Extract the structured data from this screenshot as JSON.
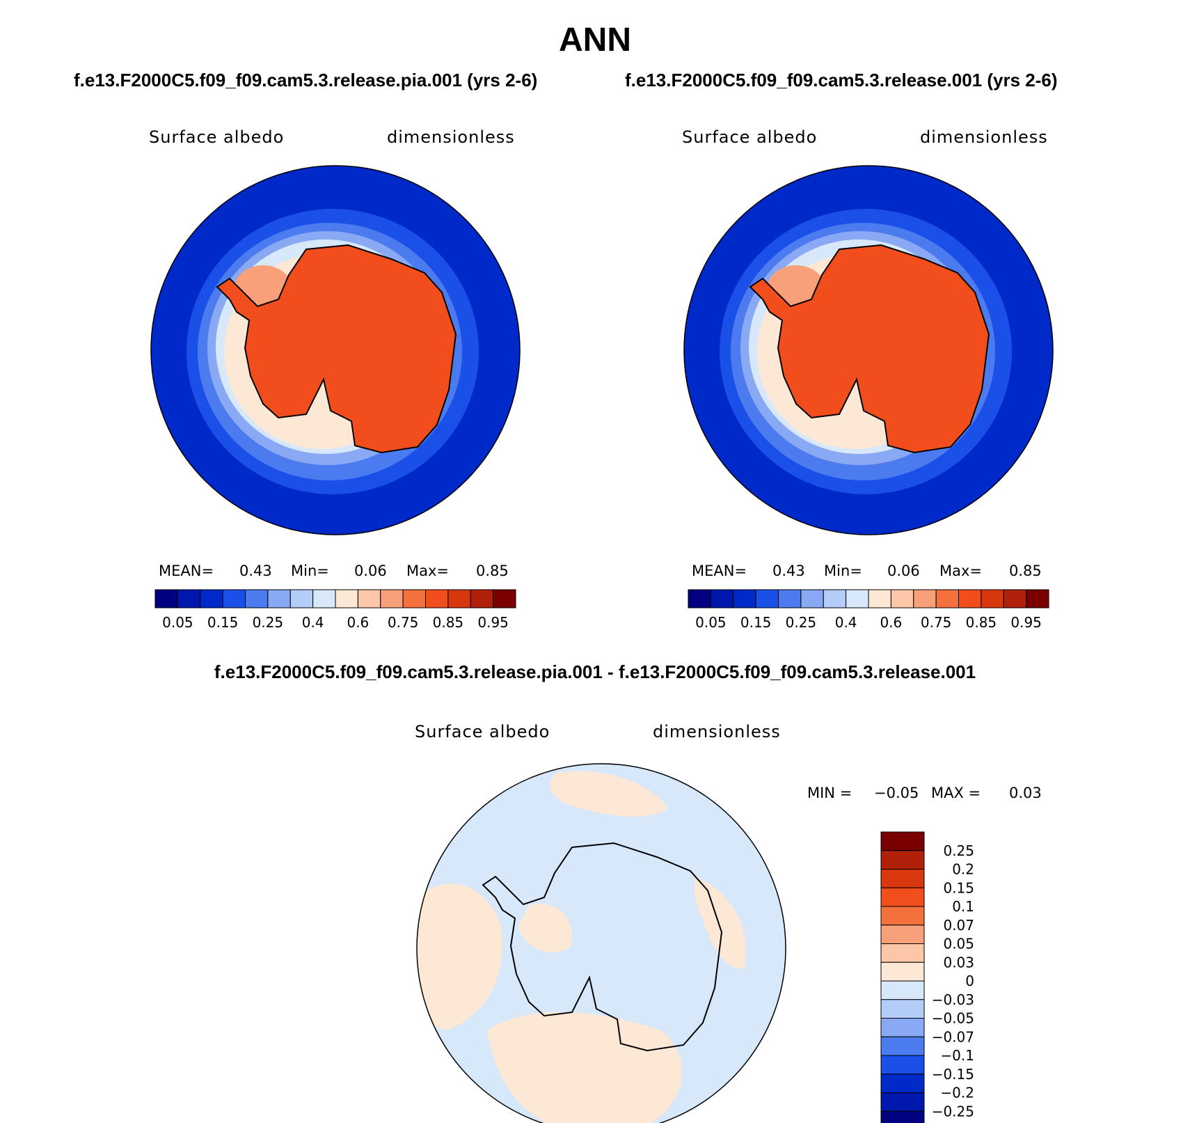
{
  "figure": {
    "title": "ANN"
  },
  "chart_data": [
    {
      "type": "heatmap",
      "title": "f.e13.F2000C5.f09_f09.cam5.3.release.pia.001 (yrs 2-6)",
      "variable": "Surface albedo",
      "units": "dimensionless",
      "projection": "south-polar-stereographic",
      "stats": {
        "mean_label": "MEAN=",
        "mean": "0.43",
        "min_label": "Min=",
        "min": "0.06",
        "max_label": "Max=",
        "max": "0.85"
      },
      "colorbar": {
        "orientation": "horizontal",
        "levels": [
          "0.05",
          "0.15",
          "0.25",
          "0.4",
          "0.6",
          "0.75",
          "0.85",
          "0.95"
        ],
        "colors": [
          "#000080",
          "#0017ad",
          "#0029c9",
          "#1a4fe8",
          "#4c7bef",
          "#8aa9f4",
          "#b4cdf8",
          "#d8e8fb",
          "#fde7d5",
          "#fbc7a8",
          "#f8a07a",
          "#f4713d",
          "#f24e1d",
          "#d9380f",
          "#b0200a",
          "#7a0000"
        ]
      }
    },
    {
      "type": "heatmap",
      "title": "f.e13.F2000C5.f09_f09.cam5.3.release.001 (yrs 2-6)",
      "variable": "Surface albedo",
      "units": "dimensionless",
      "projection": "south-polar-stereographic",
      "stats": {
        "mean_label": "MEAN=",
        "mean": "0.43",
        "min_label": "Min=",
        "min": "0.06",
        "max_label": "Max=",
        "max": "0.85"
      },
      "colorbar": {
        "orientation": "horizontal",
        "levels": [
          "0.05",
          "0.15",
          "0.25",
          "0.4",
          "0.6",
          "0.75",
          "0.85",
          "0.95"
        ],
        "colors": [
          "#000080",
          "#0017ad",
          "#0029c9",
          "#1a4fe8",
          "#4c7bef",
          "#8aa9f4",
          "#b4cdf8",
          "#d8e8fb",
          "#fde7d5",
          "#fbc7a8",
          "#f8a07a",
          "#f4713d",
          "#f24e1d",
          "#d9380f",
          "#b0200a",
          "#7a0000"
        ]
      }
    },
    {
      "type": "heatmap",
      "title": "f.e13.F2000C5.f09_f09.cam5.3.release.pia.001 - f.e13.F2000C5.f09_f09.cam5.3.release.001",
      "variable": "Surface albedo",
      "units": "dimensionless",
      "projection": "south-polar-stereographic",
      "stats": {
        "min_label": "MIN =",
        "min": "−0.05",
        "max_label": "MAX =",
        "max": "0.03"
      },
      "colorbar": {
        "orientation": "vertical",
        "levels": [
          "0.25",
          "0.2",
          "0.15",
          "0.1",
          "0.07",
          "0.05",
          "0.03",
          "0",
          "−0.03",
          "−0.05",
          "−0.07",
          "−0.1",
          "−0.15",
          "−0.2",
          "−0.25"
        ],
        "colors": [
          "#7a0000",
          "#b0200a",
          "#d9380f",
          "#f24e1d",
          "#f4713d",
          "#f8a07a",
          "#fbc7a8",
          "#fde7d5",
          "#d8e8fb",
          "#b4cdf8",
          "#8aa9f4",
          "#4c7bef",
          "#1a4fe8",
          "#0029c9",
          "#0017ad",
          "#000080"
        ]
      }
    }
  ],
  "palette": {
    "ocean": "#0029c9",
    "ice_land": "#f24e1d",
    "coast": "#000000",
    "diff_pos": "#fde7d5",
    "diff_neg": "#d8e8fb"
  }
}
